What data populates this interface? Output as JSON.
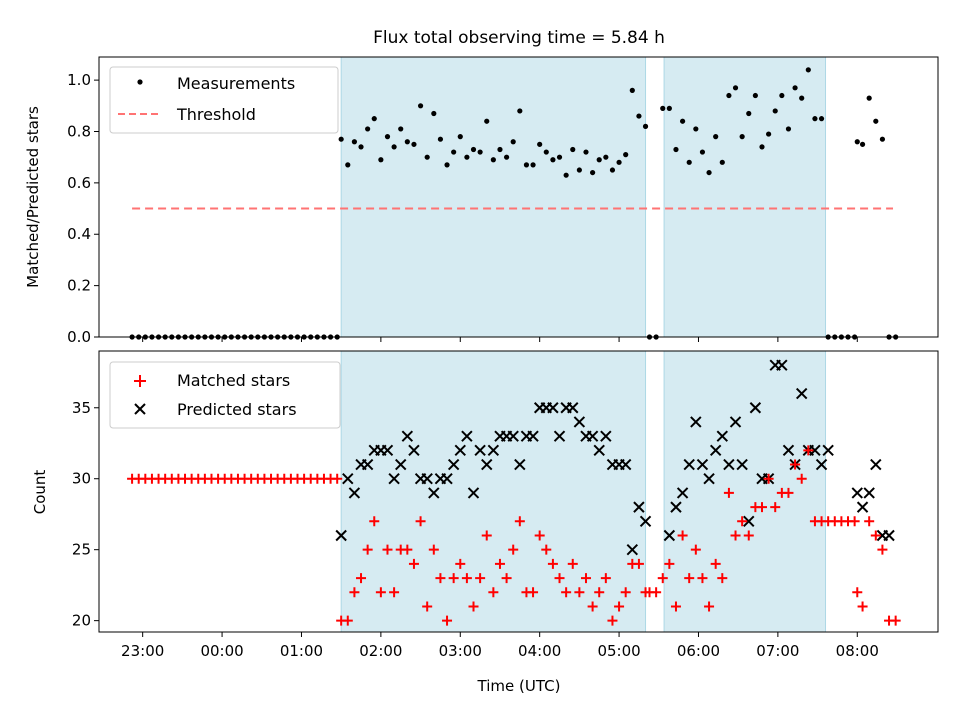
{
  "chart_data": [
    {
      "type": "scatter",
      "title": "Flux total observing time = 5.84 h",
      "xlabel": "",
      "ylabel": "Matched/Predicted stars",
      "ylim": [
        0,
        1.09
      ],
      "yticks": [
        0.0,
        0.2,
        0.4,
        0.6,
        0.8,
        1.0
      ],
      "ytick_labels": [
        "0.0",
        "0.2",
        "0.4",
        "0.6",
        "0.8",
        "1.0"
      ],
      "legend": {
        "placement": "top-left",
        "entries": [
          "Measurements",
          "Threshold"
        ]
      },
      "shaded_intervals": [
        [
          "01:30",
          "05:20"
        ],
        [
          "05:34",
          "07:36"
        ]
      ],
      "threshold": {
        "name": "Threshold",
        "value": 0.5,
        "x_range": [
          "22:52",
          "08:27"
        ],
        "color": "#ff7373"
      },
      "series": [
        {
          "name": "Measurements",
          "color": "#000000",
          "x": [
            "22:52",
            "22:57",
            "23:02",
            "23:07",
            "23:12",
            "23:17",
            "23:22",
            "23:27",
            "23:32",
            "23:37",
            "23:42",
            "23:47",
            "23:52",
            "23:57",
            "00:02",
            "00:07",
            "00:12",
            "00:17",
            "00:22",
            "00:27",
            "00:32",
            "00:37",
            "00:42",
            "00:47",
            "00:52",
            "00:57",
            "01:02",
            "01:07",
            "01:12",
            "01:17",
            "01:22",
            "01:27",
            "01:30",
            "01:35",
            "01:40",
            "01:45",
            "01:50",
            "01:55",
            "02:00",
            "02:05",
            "02:10",
            "02:15",
            "02:20",
            "02:25",
            "02:30",
            "02:35",
            "02:40",
            "02:45",
            "02:50",
            "02:55",
            "03:00",
            "03:05",
            "03:10",
            "03:15",
            "03:20",
            "03:25",
            "03:30",
            "03:35",
            "03:40",
            "03:45",
            "03:50",
            "03:55",
            "04:00",
            "04:05",
            "04:10",
            "04:15",
            "04:20",
            "04:25",
            "04:30",
            "04:35",
            "04:40",
            "04:45",
            "04:50",
            "04:55",
            "05:00",
            "05:05",
            "05:10",
            "05:15",
            "05:20",
            "05:23",
            "05:28",
            "05:33",
            "05:38",
            "05:43",
            "05:48",
            "05:53",
            "05:58",
            "06:03",
            "06:08",
            "06:13",
            "06:18",
            "06:23",
            "06:28",
            "06:33",
            "06:38",
            "06:43",
            "06:48",
            "06:53",
            "06:58",
            "07:03",
            "07:08",
            "07:13",
            "07:18",
            "07:23",
            "07:28",
            "07:33",
            "07:38",
            "07:43",
            "07:48",
            "07:53",
            "07:58",
            "08:00",
            "08:04",
            "08:09",
            "08:14",
            "08:19",
            "08:24",
            "08:29"
          ],
          "y": [
            0,
            0,
            0,
            0,
            0,
            0,
            0,
            0,
            0,
            0,
            0,
            0,
            0,
            0,
            0,
            0,
            0,
            0,
            0,
            0,
            0,
            0,
            0,
            0,
            0,
            0,
            0,
            0,
            0,
            0,
            0,
            0,
            0.77,
            0.67,
            0.76,
            0.74,
            0.81,
            0.85,
            0.69,
            0.78,
            0.74,
            0.81,
            0.76,
            0.75,
            0.9,
            0.7,
            0.87,
            0.77,
            0.67,
            0.72,
            0.78,
            0.7,
            0.73,
            0.72,
            0.84,
            0.69,
            0.73,
            0.7,
            0.76,
            0.88,
            0.67,
            0.67,
            0.75,
            0.72,
            0.69,
            0.7,
            0.63,
            0.73,
            0.65,
            0.72,
            0.64,
            0.69,
            0.7,
            0.65,
            0.68,
            0.71,
            0.96,
            0.86,
            0.82,
            0,
            0,
            0.89,
            0.89,
            0.73,
            0.84,
            0.68,
            0.81,
            0.72,
            0.64,
            0.78,
            0.68,
            0.94,
            0.97,
            0.78,
            0.87,
            0.94,
            0.74,
            0.79,
            0.88,
            0.94,
            0.81,
            0.97,
            0.93,
            1.04,
            0.85,
            0.85,
            0,
            0,
            0,
            0,
            0,
            0.76,
            0.75,
            0.93,
            0.84,
            0.77,
            0,
            0
          ]
        }
      ]
    },
    {
      "type": "scatter",
      "title": "",
      "xlabel": "Time (UTC)",
      "ylabel": "Count",
      "ylim": [
        19.2,
        39
      ],
      "yticks": [
        20,
        25,
        30,
        35
      ],
      "ytick_labels": [
        "20",
        "25",
        "30",
        "35"
      ],
      "xlim": [
        "22:27",
        "09:01"
      ],
      "xticks": [
        "23:00",
        "00:00",
        "01:00",
        "02:00",
        "03:00",
        "04:00",
        "05:00",
        "06:00",
        "07:00",
        "08:00"
      ],
      "xtick_labels": [
        "23:00",
        "00:00",
        "01:00",
        "02:00",
        "03:00",
        "04:00",
        "05:00",
        "06:00",
        "07:00",
        "08:00"
      ],
      "legend": {
        "placement": "top-left",
        "entries": [
          "Matched stars",
          "Predicted stars"
        ]
      },
      "shaded_intervals": [
        [
          "01:30",
          "05:20"
        ],
        [
          "05:34",
          "07:36"
        ]
      ],
      "series": [
        {
          "name": "Matched stars",
          "color": "#ff0000",
          "marker": "+",
          "x": [
            "22:52",
            "22:57",
            "23:02",
            "23:07",
            "23:12",
            "23:17",
            "23:22",
            "23:27",
            "23:32",
            "23:37",
            "23:42",
            "23:47",
            "23:52",
            "23:57",
            "00:02",
            "00:07",
            "00:12",
            "00:17",
            "00:22",
            "00:27",
            "00:32",
            "00:37",
            "00:42",
            "00:47",
            "00:52",
            "00:57",
            "01:02",
            "01:07",
            "01:12",
            "01:17",
            "01:22",
            "01:27",
            "01:30",
            "01:35",
            "01:40",
            "01:45",
            "01:50",
            "01:55",
            "02:00",
            "02:05",
            "02:10",
            "02:15",
            "02:20",
            "02:25",
            "02:30",
            "02:35",
            "02:40",
            "02:45",
            "02:50",
            "02:55",
            "03:00",
            "03:05",
            "03:10",
            "03:15",
            "03:20",
            "03:25",
            "03:30",
            "03:35",
            "03:40",
            "03:45",
            "03:50",
            "03:55",
            "04:00",
            "04:05",
            "04:10",
            "04:15",
            "04:20",
            "04:25",
            "04:30",
            "04:35",
            "04:40",
            "04:45",
            "04:50",
            "04:55",
            "05:00",
            "05:05",
            "05:10",
            "05:15",
            "05:20",
            "05:23",
            "05:28",
            "05:33",
            "05:38",
            "05:43",
            "05:48",
            "05:53",
            "05:58",
            "06:03",
            "06:08",
            "06:13",
            "06:18",
            "06:23",
            "06:28",
            "06:33",
            "06:38",
            "06:43",
            "06:48",
            "06:53",
            "06:58",
            "07:03",
            "07:08",
            "07:13",
            "07:18",
            "07:23",
            "07:28",
            "07:33",
            "07:38",
            "07:43",
            "07:48",
            "07:53",
            "07:58",
            "08:00",
            "08:04",
            "08:09",
            "08:14",
            "08:19",
            "08:24",
            "08:29"
          ],
          "y": [
            30,
            30,
            30,
            30,
            30,
            30,
            30,
            30,
            30,
            30,
            30,
            30,
            30,
            30,
            30,
            30,
            30,
            30,
            30,
            30,
            30,
            30,
            30,
            30,
            30,
            30,
            30,
            30,
            30,
            30,
            30,
            30,
            20,
            20,
            22,
            23,
            25,
            27,
            22,
            25,
            22,
            25,
            25,
            24,
            27,
            21,
            25,
            23,
            20,
            23,
            24,
            23,
            21,
            23,
            26,
            22,
            24,
            23,
            25,
            27,
            22,
            22,
            26,
            25,
            24,
            23,
            22,
            24,
            22,
            23,
            21,
            22,
            23,
            20,
            21,
            22,
            24,
            24,
            22,
            22,
            22,
            23,
            24,
            21,
            26,
            23,
            25,
            23,
            21,
            24,
            23,
            29,
            26,
            27,
            26,
            28,
            28,
            30,
            28,
            29,
            29,
            31,
            30,
            32,
            27,
            27,
            27,
            27,
            27,
            27,
            27,
            22,
            21,
            27,
            26,
            25,
            20,
            20
          ]
        },
        {
          "name": "Predicted stars",
          "color": "#000000",
          "marker": "x",
          "x": [
            "01:30",
            "01:35",
            "01:40",
            "01:45",
            "01:50",
            "01:55",
            "02:00",
            "02:05",
            "02:10",
            "02:15",
            "02:20",
            "02:25",
            "02:30",
            "02:35",
            "02:40",
            "02:45",
            "02:50",
            "02:55",
            "03:00",
            "03:05",
            "03:10",
            "03:15",
            "03:20",
            "03:25",
            "03:30",
            "03:35",
            "03:40",
            "03:45",
            "03:50",
            "03:55",
            "04:00",
            "04:05",
            "04:10",
            "04:15",
            "04:20",
            "04:25",
            "04:30",
            "04:35",
            "04:40",
            "04:45",
            "04:50",
            "04:55",
            "05:00",
            "05:05",
            "05:10",
            "05:15",
            "05:20",
            "05:38",
            "05:43",
            "05:48",
            "05:53",
            "05:58",
            "06:03",
            "06:08",
            "06:13",
            "06:18",
            "06:23",
            "06:28",
            "06:33",
            "06:38",
            "06:43",
            "06:48",
            "06:53",
            "06:58",
            "07:03",
            "07:08",
            "07:13",
            "07:18",
            "07:23",
            "07:28",
            "07:33",
            "07:38",
            "08:00",
            "08:04",
            "08:09",
            "08:14",
            "08:19",
            "08:24"
          ],
          "y": [
            26,
            30,
            29,
            31,
            31,
            32,
            32,
            32,
            30,
            31,
            33,
            32,
            30,
            30,
            29,
            30,
            30,
            31,
            32,
            33,
            29,
            32,
            31,
            32,
            33,
            33,
            33,
            31,
            33,
            33,
            35,
            35,
            35,
            33,
            35,
            35,
            34,
            33,
            33,
            32,
            33,
            31,
            31,
            31,
            25,
            28,
            27,
            26,
            28,
            29,
            31,
            34,
            31,
            30,
            32,
            33,
            31,
            34,
            31,
            27,
            35,
            30,
            30,
            38,
            38,
            32,
            31,
            36,
            32,
            32,
            31,
            32,
            29,
            28,
            29,
            31,
            26,
            26
          ]
        }
      ]
    }
  ]
}
